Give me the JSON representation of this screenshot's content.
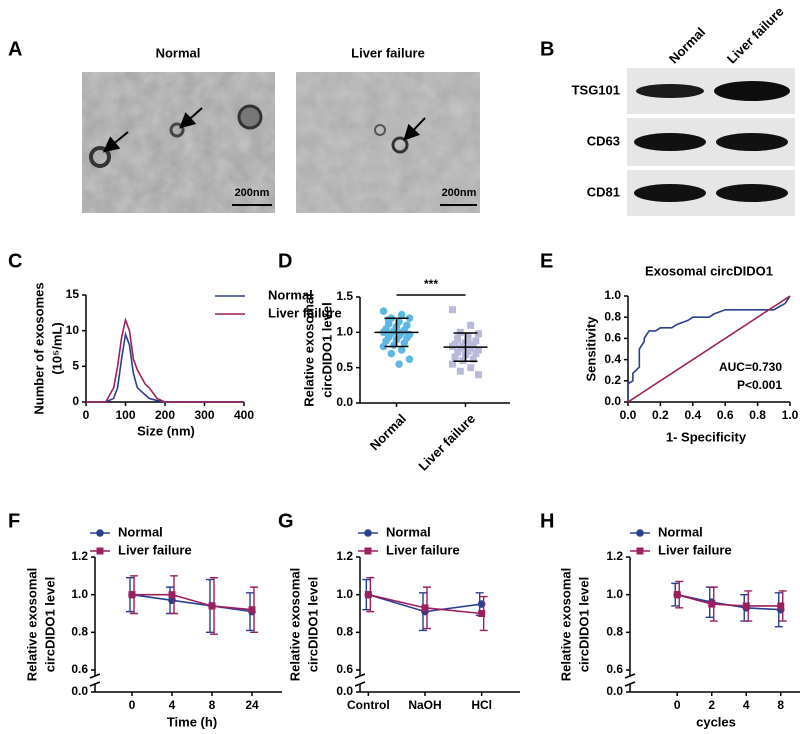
{
  "panel_labels": [
    "A",
    "B",
    "C",
    "D",
    "E",
    "F",
    "G",
    "H"
  ],
  "micrographs": {
    "titles": [
      "Normal",
      "Liver failure"
    ],
    "scale_bar": "200nm"
  },
  "western_blot": {
    "lanes": [
      "Normal",
      "Liver failure"
    ],
    "proteins": [
      "TSG101",
      "CD63",
      "CD81"
    ]
  },
  "chart_data": [
    {
      "type": "line",
      "ylabel": [
        "Number of exosomes",
        "(10⁵/mL)"
      ],
      "xlabel": "Size (nm)",
      "x": [
        0,
        50,
        70,
        80,
        90,
        100,
        110,
        120,
        130,
        140,
        150,
        160,
        180,
        200,
        300,
        400
      ],
      "xlim": [
        0,
        400
      ],
      "xticks": [
        0,
        100,
        200,
        300,
        400
      ],
      "ylim": [
        0,
        15
      ],
      "yticks": [
        0,
        5,
        10,
        15
      ],
      "legend": "upper right",
      "series": [
        {
          "name": "Normal",
          "color": "#2b3f8f",
          "values": [
            0,
            0,
            0.5,
            2,
            6,
            9.5,
            8,
            4,
            2,
            1.5,
            1,
            0.5,
            0.2,
            0,
            0,
            0
          ]
        },
        {
          "name": "Liver failure",
          "color": "#9c1f5e",
          "values": [
            0,
            0,
            2,
            5,
            9,
            11.5,
            10,
            6,
            4.5,
            3.5,
            2.5,
            2,
            0.5,
            0,
            0,
            0
          ]
        }
      ]
    },
    {
      "type": "strip",
      "ylabel": [
        "Relative exosomal",
        "circDIDO1 level"
      ],
      "categories": [
        "Normal",
        "Liver failure"
      ],
      "ylim": [
        0,
        1.5
      ],
      "yticks": [
        {
          "value": 0,
          "label": "0.0"
        },
        {
          "value": 0.5,
          "label": "0.5"
        },
        {
          "value": 1,
          "label": "1.0"
        },
        {
          "value": 1.5,
          "label": "1.5"
        }
      ],
      "annotation": "***",
      "series": [
        {
          "color": "#5cb8e0",
          "marker": "circle",
          "mean": 1.0,
          "sd": 0.2,
          "values": [
            1.3,
            1.25,
            1.2,
            1.2,
            1.15,
            1.12,
            1.1,
            1.08,
            1.05,
            1.03,
            1.02,
            1.0,
            1.0,
            0.98,
            0.97,
            0.95,
            0.93,
            0.92,
            0.9,
            0.88,
            0.85,
            0.82,
            0.8,
            0.75,
            0.7,
            0.62,
            0.55,
            1.18
          ]
        },
        {
          "color": "#b9b9d9",
          "marker": "square",
          "mean": 0.79,
          "sd": 0.2,
          "values": [
            1.32,
            1.1,
            1.0,
            0.98,
            0.95,
            0.9,
            0.88,
            0.85,
            0.83,
            0.82,
            0.8,
            0.8,
            0.78,
            0.77,
            0.75,
            0.73,
            0.72,
            0.7,
            0.68,
            0.65,
            0.62,
            0.6,
            0.55,
            0.5,
            0.45,
            0.4,
            0.85,
            0.92
          ]
        }
      ]
    },
    {
      "type": "line",
      "title": "Exosomal circDIDO1",
      "xlabel": "1- Specificity",
      "ylabel": [
        "Sensitivity"
      ],
      "annotations": [
        "AUC=0.730",
        "P<0.001"
      ],
      "xlim": [
        0,
        1
      ],
      "ylim": [
        0,
        1
      ],
      "xticks": [
        {
          "value": 0,
          "label": "0.0"
        },
        {
          "value": 0.2,
          "label": "0.2"
        },
        {
          "value": 0.4,
          "label": "0.4"
        },
        {
          "value": 0.6,
          "label": "0.6"
        },
        {
          "value": 0.8,
          "label": "0.8"
        },
        {
          "value": 1,
          "label": "1.0"
        }
      ],
      "yticks": [
        {
          "value": 0,
          "label": "0.0"
        },
        {
          "value": 0.2,
          "label": "0.2"
        },
        {
          "value": 0.4,
          "label": "0.4"
        },
        {
          "value": 0.6,
          "label": "0.6"
        },
        {
          "value": 0.8,
          "label": "0.8"
        },
        {
          "value": 1,
          "label": "1.0"
        }
      ],
      "series": [
        {
          "color": "#2b3f8f",
          "x": [
            0,
            0,
            0.03,
            0.03,
            0.07,
            0.07,
            0.1,
            0.1,
            0.13,
            0.17,
            0.2,
            0.27,
            0.3,
            0.37,
            0.4,
            0.5,
            0.53,
            0.6,
            0.7,
            0.8,
            0.9,
            0.97,
            1
          ],
          "values": [
            0,
            0.17,
            0.2,
            0.27,
            0.33,
            0.5,
            0.57,
            0.6,
            0.67,
            0.67,
            0.7,
            0.7,
            0.73,
            0.77,
            0.8,
            0.8,
            0.83,
            0.87,
            0.87,
            0.87,
            0.87,
            0.93,
            1
          ]
        },
        {
          "color": "#9c1f5e",
          "x": [
            0,
            1
          ],
          "values": [
            0,
            1
          ]
        }
      ]
    },
    {
      "type": "line",
      "ylabel": [
        "Relative exosomal",
        "circDIDO1 level"
      ],
      "xlabel": "Time (h)",
      "categories": [
        "0",
        "4",
        "8",
        "24"
      ],
      "ylim": [
        0,
        1.2
      ],
      "ybreak": [
        0,
        0.6
      ],
      "legend": "upper left",
      "yticks": [
        {
          "value": 0,
          "label": "0.0"
        },
        {
          "value": 0.6,
          "label": "0.6"
        },
        {
          "value": 0.8,
          "label": "0.8"
        },
        {
          "value": 1,
          "label": "1.0"
        },
        {
          "value": 1.2,
          "label": "1.2"
        }
      ],
      "series": [
        {
          "name": "Normal",
          "color": "#2b3f8f",
          "marker": "circle",
          "values": [
            1.0,
            0.97,
            0.94,
            0.91
          ],
          "errors": [
            0.09,
            0.07,
            0.14,
            0.1
          ]
        },
        {
          "name": "Liver failure",
          "color": "#9c1f5e",
          "marker": "square",
          "values": [
            1.0,
            1.0,
            0.94,
            0.92
          ],
          "errors": [
            0.1,
            0.1,
            0.15,
            0.12
          ]
        }
      ]
    },
    {
      "type": "line",
      "ylabel": [
        "Relative exosomal",
        "circDIDO1 level"
      ],
      "categories": [
        "Control",
        "NaOH",
        "HCl"
      ],
      "ylim": [
        0,
        1.2
      ],
      "ybreak": [
        0,
        0.6
      ],
      "legend": "upper left",
      "yticks": [
        {
          "value": 0,
          "label": "0.0"
        },
        {
          "value": 0.6,
          "label": "0.6"
        },
        {
          "value": 0.8,
          "label": "0.8"
        },
        {
          "value": 1,
          "label": "1.0"
        },
        {
          "value": 1.2,
          "label": "1.2"
        }
      ],
      "series": [
        {
          "name": "Normal",
          "color": "#2b3f8f",
          "marker": "circle",
          "values": [
            1.0,
            0.91,
            0.95
          ],
          "errors": [
            0.08,
            0.1,
            0.06
          ]
        },
        {
          "name": "Liver failure",
          "color": "#9c1f5e",
          "marker": "square",
          "values": [
            1.0,
            0.93,
            0.9
          ],
          "errors": [
            0.09,
            0.11,
            0.09
          ]
        }
      ]
    },
    {
      "type": "line",
      "ylabel": [
        "Relative exosomal",
        "circDIDO1 level"
      ],
      "xlabel": "cycles",
      "categories": [
        "0",
        "2",
        "4",
        "8"
      ],
      "ylim": [
        0,
        1.2
      ],
      "ybreak": [
        0,
        0.6
      ],
      "legend": "upper left",
      "yticks": [
        {
          "value": 0,
          "label": "0.0"
        },
        {
          "value": 0.6,
          "label": "0.6"
        },
        {
          "value": 0.8,
          "label": "0.8"
        },
        {
          "value": 1,
          "label": "1.0"
        },
        {
          "value": 1.2,
          "label": "1.2"
        }
      ],
      "series": [
        {
          "name": "Normal",
          "color": "#2b3f8f",
          "marker": "circle",
          "values": [
            1.0,
            0.96,
            0.93,
            0.92
          ],
          "errors": [
            0.06,
            0.08,
            0.07,
            0.09
          ]
        },
        {
          "name": "Liver failure",
          "color": "#9c1f5e",
          "marker": "square",
          "values": [
            1.0,
            0.95,
            0.94,
            0.94
          ],
          "errors": [
            0.07,
            0.09,
            0.08,
            0.08
          ]
        }
      ]
    }
  ]
}
